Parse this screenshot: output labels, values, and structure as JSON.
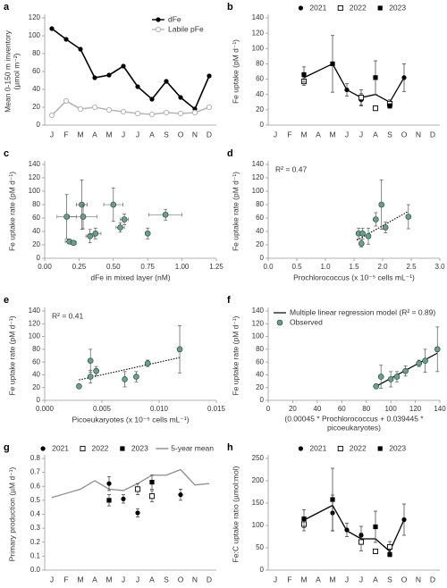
{
  "chart_data": [
    {
      "label": "a",
      "type": "line",
      "categories": [
        "J",
        "F",
        "M",
        "A",
        "M",
        "J",
        "J",
        "A",
        "S",
        "O",
        "N",
        "D"
      ],
      "ylabel": [
        "Mean 0-150 m inventory",
        "(µmol m⁻²)"
      ],
      "ylim": [
        0,
        120
      ],
      "yticks": [
        0,
        20,
        40,
        60,
        80,
        100,
        120
      ],
      "legend": "upper right",
      "series": [
        {
          "name": "dFe",
          "color": "#000000",
          "marker": "circle",
          "line": true,
          "values": [
            108,
            96,
            85,
            53,
            56,
            66,
            43,
            29,
            49,
            31,
            18,
            55
          ]
        },
        {
          "name": "Labile pFe",
          "color": "#b5b5b5",
          "marker": "open-circle",
          "line": true,
          "values": [
            11,
            27,
            18,
            20,
            17,
            15,
            13,
            12,
            14,
            13,
            14,
            20
          ]
        }
      ]
    },
    {
      "label": "b",
      "type": "line",
      "categories": [
        "J",
        "F",
        "M",
        "A",
        "M",
        "J",
        "J",
        "A",
        "S",
        "O",
        "N",
        "D"
      ],
      "ylabel": "Fe uptake (pM d⁻¹)",
      "ylim": [
        0,
        140
      ],
      "yticks": [
        0,
        20,
        40,
        60,
        80,
        100,
        120,
        140
      ],
      "legend": "top",
      "series": [
        {
          "color": "#000000",
          "line": true,
          "connect_gaps": true,
          "values": [
            null,
            null,
            62,
            null,
            80,
            46,
            36,
            40,
            30,
            62,
            null,
            null
          ]
        },
        {
          "name": "2021",
          "color": "#000000",
          "marker": "circle",
          "values": [
            null,
            null,
            null,
            null,
            null,
            46,
            33,
            null,
            null,
            62,
            null,
            null
          ],
          "errors": [
            null,
            null,
            null,
            null,
            null,
            8,
            8,
            null,
            null,
            18,
            null,
            null
          ]
        },
        {
          "name": "2022",
          "color": "#000000",
          "marker": "open-square",
          "values": [
            null,
            null,
            57,
            null,
            null,
            null,
            36,
            22,
            28,
            null,
            null,
            null
          ],
          "errors": [
            null,
            null,
            5,
            null,
            null,
            null,
            10,
            3,
            5,
            null,
            null,
            null
          ]
        },
        {
          "name": "2023",
          "color": "#000000",
          "marker": "square",
          "values": [
            null,
            null,
            66,
            null,
            80,
            null,
            null,
            62,
            25,
            null,
            null,
            null
          ],
          "errors": [
            null,
            null,
            10,
            null,
            37,
            null,
            null,
            22,
            3,
            null,
            null,
            null
          ]
        }
      ]
    },
    {
      "label": "c",
      "type": "scatter",
      "xlabel": "dFe in mixed layer (nM)",
      "ylabel": "Fe uptake rate (pM d⁻¹)",
      "xlim": [
        0,
        1.25
      ],
      "xticks": [
        {
          "value": 0,
          "label": "0.00"
        },
        0.25,
        {
          "value": 0.5,
          "label": "0.50"
        },
        0.75,
        {
          "value": 1,
          "label": "1.00"
        },
        1.25
      ],
      "ylim": [
        0,
        140
      ],
      "yticks": [
        0,
        20,
        40,
        60,
        80,
        100,
        120,
        140
      ],
      "series": [
        {
          "color": "#5fa58e",
          "x": [
            0.16,
            0.18,
            0.21,
            0.27,
            0.28,
            0.33,
            0.37,
            0.5,
            0.55,
            0.58,
            0.75,
            0.88
          ],
          "values": [
            62,
            25,
            23,
            80,
            62,
            33,
            37,
            80,
            46,
            58,
            37,
            65
          ],
          "xerr": [
            0.07,
            0.03,
            0.02,
            0.04,
            0.1,
            0.03,
            0.04,
            0.07,
            0.03,
            0.03,
            0.01,
            0.12
          ],
          "errors": [
            33,
            2,
            2,
            37,
            18,
            10,
            8,
            25,
            7,
            8,
            8,
            8
          ]
        }
      ]
    },
    {
      "label": "d",
      "type": "scatter",
      "xlabel": "Prochlorococcus (x 10⁻⁵ cells mL⁻¹)",
      "ylabel": "Fe uptake rate (pM d⁻¹)",
      "annotation": "R² = 0.47",
      "xlim": [
        0,
        3
      ],
      "xticks": [
        {
          "value": 0,
          "label": "0.0"
        },
        0.5,
        {
          "value": 1,
          "label": "1.0"
        },
        1.5,
        {
          "value": 2,
          "label": "2.0"
        },
        2.5,
        {
          "value": 3,
          "label": "3.0"
        }
      ],
      "ylim": [
        0,
        140
      ],
      "yticks": [
        0,
        20,
        40,
        60,
        80,
        100,
        120,
        140
      ],
      "series": [
        {
          "color": "#5fa58e",
          "x": [
            1.58,
            1.63,
            1.65,
            1.75,
            1.88,
            1.98,
            2.05,
            2.45
          ],
          "values": [
            37,
            22,
            37,
            33,
            58,
            80,
            46,
            62
          ],
          "errors": [
            8,
            5,
            8,
            12,
            10,
            37,
            8,
            18
          ]
        }
      ],
      "trendline": {
        "style": "dotted",
        "x": [
          1.55,
          2.45
        ],
        "values": [
          27,
          70
        ]
      }
    },
    {
      "label": "e",
      "type": "scatter",
      "xlabel": "Picoeukaryotes (x 10⁻⁵ cells mL⁻¹)",
      "ylabel": "Fe uptake rate (pM d⁻¹)",
      "annotation": "R² = 0.41",
      "xlim": [
        0,
        0.015
      ],
      "xticks": [
        {
          "value": 0,
          "label": "0.000"
        },
        {
          "value": 0.005,
          "label": "0.005"
        },
        {
          "value": 0.01,
          "label": "0.010"
        },
        {
          "value": 0.015,
          "label": "0.015"
        }
      ],
      "ylim": [
        0,
        140
      ],
      "yticks": [
        0,
        20,
        40,
        60,
        80,
        100,
        120,
        140
      ],
      "series": [
        {
          "color": "#5fa58e",
          "x": [
            0.003,
            0.004,
            0.004,
            0.0045,
            0.007,
            0.008,
            0.009,
            0.0118
          ],
          "values": [
            22,
            37,
            62,
            46,
            33,
            37,
            58,
            80
          ],
          "errors": [
            2,
            10,
            18,
            7,
            12,
            8,
            5,
            37
          ]
        }
      ],
      "trendline": {
        "style": "dotted",
        "x": [
          0.003,
          0.0118
        ],
        "values": [
          32,
          67
        ]
      }
    },
    {
      "label": "f",
      "type": "scatter",
      "xlabel": [
        "(0.00045 * Prochlorococcus + 0.039445 *",
        "picoeukaryotes)"
      ],
      "ylabel": "Fe uptake rate (pM d⁻¹)",
      "legend": "upper left",
      "xlim": [
        0,
        140
      ],
      "xticks": [
        0,
        20,
        40,
        60,
        80,
        100,
        120,
        140
      ],
      "ylim": [
        0,
        140
      ],
      "yticks": [
        0,
        20,
        40,
        60,
        80,
        100,
        120,
        140
      ],
      "series": [
        {
          "name": "Observed",
          "color": "#5fa58e",
          "x": [
            88,
            92,
            100,
            105,
            112,
            123,
            128,
            138
          ],
          "values": [
            22,
            37,
            33,
            37,
            46,
            58,
            62,
            80
          ],
          "errors": [
            2,
            18,
            12,
            8,
            8,
            5,
            18,
            35
          ]
        }
      ],
      "trendline": {
        "name": "Multiple linear regression model (R² = 0.89)",
        "style": "solid",
        "x": [
          88,
          138
        ],
        "values": [
          22,
          74
        ]
      }
    },
    {
      "label": "g",
      "type": "line",
      "categories": [
        "J",
        "F",
        "M",
        "A",
        "M",
        "J",
        "J",
        "A",
        "S",
        "O",
        "N",
        "D"
      ],
      "ylabel": "Primary production (µM d⁻¹)",
      "ylim": [
        0,
        0.8
      ],
      "yticks": [
        {
          "value": 0,
          "label": "0.0"
        },
        0.1,
        0.2,
        0.3,
        0.4,
        0.5,
        0.6,
        0.7,
        0.8
      ],
      "legend": "top",
      "series": [
        {
          "name": "2021",
          "color": "#000000",
          "marker": "circle",
          "values": [
            null,
            null,
            null,
            null,
            0.62,
            0.51,
            0.41,
            null,
            null,
            0.54,
            null,
            null
          ],
          "errors": [
            null,
            null,
            null,
            null,
            0.05,
            0.03,
            0.03,
            null,
            null,
            0.04,
            null,
            null
          ]
        },
        {
          "name": "2022",
          "color": "#000000",
          "marker": "open-square",
          "values": [
            null,
            null,
            null,
            null,
            null,
            null,
            0.58,
            0.53,
            null,
            null,
            null,
            null
          ],
          "errors": [
            null,
            null,
            null,
            null,
            null,
            null,
            0.04,
            0.04,
            null,
            null,
            null,
            null
          ]
        },
        {
          "name": "2023",
          "color": "#000000",
          "marker": "square",
          "values": [
            null,
            null,
            null,
            null,
            0.5,
            null,
            null,
            0.63,
            null,
            null,
            null,
            null
          ],
          "errors": [
            null,
            null,
            null,
            null,
            0.04,
            null,
            null,
            0.05,
            null,
            null,
            null,
            null
          ]
        },
        {
          "name": "5-year mean",
          "color": "#8c8c8c",
          "line": true,
          "values": [
            0.52,
            0.55,
            0.58,
            0.64,
            0.58,
            0.57,
            0.62,
            0.68,
            0.68,
            0.72,
            0.61,
            0.62
          ]
        }
      ]
    },
    {
      "label": "h",
      "type": "line",
      "categories": [
        "J",
        "F",
        "M",
        "A",
        "M",
        "J",
        "J",
        "A",
        "S",
        "O",
        "N",
        "D"
      ],
      "ylabel": "Fe:C uptake ratio (µmol:mol)",
      "ylim": [
        0,
        250
      ],
      "yticks": [
        0,
        50,
        100,
        150,
        200,
        250
      ],
      "legend": "top",
      "series": [
        {
          "color": "#000000",
          "line": true,
          "connect_gaps": true,
          "values": [
            null,
            null,
            112,
            null,
            145,
            88,
            70,
            70,
            42,
            113,
            null,
            null
          ]
        },
        {
          "name": "2021",
          "color": "#000000",
          "marker": "circle",
          "values": [
            null,
            null,
            null,
            null,
            128,
            90,
            78,
            null,
            null,
            113,
            null,
            null
          ],
          "errors": [
            null,
            null,
            null,
            null,
            40,
            15,
            20,
            null,
            null,
            35,
            null,
            null
          ]
        },
        {
          "name": "2022",
          "color": "#000000",
          "marker": "open-square",
          "values": [
            null,
            null,
            103,
            null,
            null,
            null,
            63,
            42,
            52,
            null,
            null,
            null
          ],
          "errors": [
            null,
            null,
            15,
            null,
            null,
            null,
            20,
            5,
            12,
            null,
            null,
            null
          ]
        },
        {
          "name": "2023",
          "color": "#000000",
          "marker": "square",
          "values": [
            null,
            null,
            115,
            null,
            158,
            null,
            null,
            97,
            35,
            null,
            null,
            null
          ],
          "errors": [
            null,
            null,
            20,
            null,
            70,
            null,
            null,
            35,
            5,
            null,
            null,
            null
          ]
        }
      ]
    }
  ]
}
